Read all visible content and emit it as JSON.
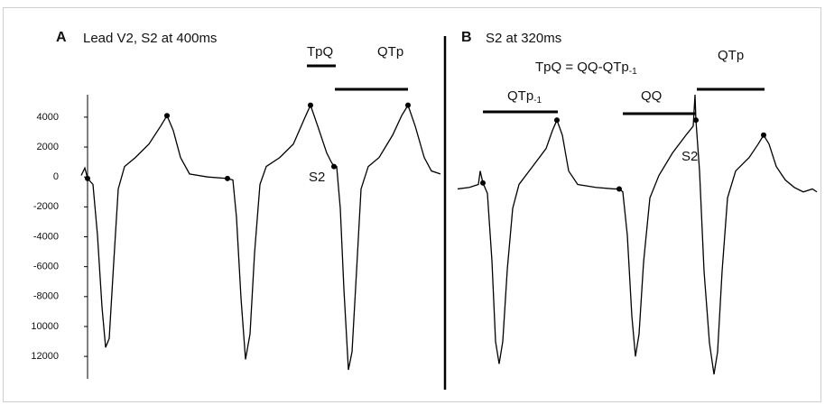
{
  "chart_data": [
    {
      "type": "line",
      "panel_label": "A",
      "title": "Lead V2, S2 at 400ms",
      "xlim": [
        0,
        400
      ],
      "ylim": [
        -13500,
        5500
      ],
      "yticks": [
        4000,
        2000,
        0,
        -2000,
        -4000,
        -6000,
        -8000,
        {
          "value": -10000,
          "label": "10000"
        },
        {
          "value": -12000,
          "label": "12000"
        }
      ],
      "series": [
        {
          "style": "line",
          "color": "#000000",
          "x": [
            0,
            4,
            7,
            13,
            18,
            23,
            27,
            31,
            36,
            41,
            48,
            60,
            75,
            88,
            95,
            102,
            110,
            120,
            140,
            162,
            168,
            172,
            177,
            182,
            187,
            192,
            198,
            205,
            220,
            235,
            248,
            254,
            262,
            272,
            277,
            280,
            283,
            287,
            291,
            296,
            300,
            305,
            310,
            318,
            330,
            345,
            355,
            362,
            370,
            380,
            388,
            398
          ],
          "values": [
            100,
            600,
            -100,
            -500,
            -3900,
            -8700,
            -11400,
            -10800,
            -5700,
            -800,
            700,
            1300,
            2200,
            3400,
            4100,
            3100,
            1300,
            200,
            0,
            -100,
            -200,
            -2700,
            -8100,
            -12200,
            -10500,
            -5100,
            -500,
            700,
            1300,
            2200,
            4000,
            4800,
            3400,
            1600,
            1000,
            700,
            700,
            -2100,
            -7500,
            -12900,
            -11700,
            -6300,
            -800,
            700,
            1300,
            2800,
            4100,
            4800,
            3400,
            1300,
            400,
            200
          ]
        },
        {
          "style": "dots",
          "color": "#000000",
          "x": [
            7,
            95,
            162,
            254,
            280,
            362
          ],
          "values": [
            -100,
            4100,
            -100,
            4800,
            700,
            4800
          ]
        }
      ],
      "annotations": [
        {
          "text": "TpQ"
        },
        {
          "text": "QTp"
        },
        {
          "text": "S2"
        }
      ]
    },
    {
      "type": "line",
      "panel_label": "B",
      "title": "S2 at 320ms",
      "xlim": [
        0,
        400
      ],
      "ylim": [
        -13500,
        5500
      ],
      "series": [
        {
          "style": "line",
          "color": "#000000",
          "x": [
            2,
            15,
            25,
            27,
            30,
            35,
            40,
            44,
            48,
            52,
            57,
            63,
            70,
            85,
            100,
            107,
            112,
            118,
            125,
            135,
            155,
            175,
            181,
            185,
            190,
            195,
            199,
            203,
            208,
            215,
            225,
            240,
            255,
            263,
            265,
            266,
            270,
            275,
            281,
            286,
            290,
            295,
            301,
            310,
            325,
            335,
            341,
            347,
            355,
            365,
            375,
            385,
            395,
            400
          ],
          "values": [
            -800,
            -700,
            -500,
            400,
            -400,
            -1100,
            -5600,
            -11000,
            -12500,
            -11000,
            -6200,
            -2100,
            -500,
            700,
            1900,
            3100,
            3800,
            2800,
            400,
            -500,
            -700,
            -800,
            -800,
            -1000,
            -3900,
            -9300,
            -12000,
            -10500,
            -5700,
            -1400,
            100,
            1600,
            2800,
            3400,
            5500,
            3800,
            400,
            -6300,
            -11100,
            -13200,
            -11700,
            -6300,
            -1400,
            400,
            1300,
            2200,
            2800,
            2200,
            700,
            -200,
            -700,
            -1000,
            -800,
            -1000
          ]
        },
        {
          "style": "dots",
          "color": "#000000",
          "x": [
            30,
            112,
            181,
            266,
            341
          ],
          "values": [
            -400,
            3800,
            -800,
            3800,
            2800
          ]
        }
      ],
      "annotations": [
        {
          "text": "TpQ = QQ-QTp",
          "sub": "-1"
        },
        {
          "text": "QTp"
        },
        {
          "text": "QTp",
          "sub": "-1"
        },
        {
          "text": "QQ"
        },
        {
          "text": "S2"
        }
      ]
    }
  ]
}
